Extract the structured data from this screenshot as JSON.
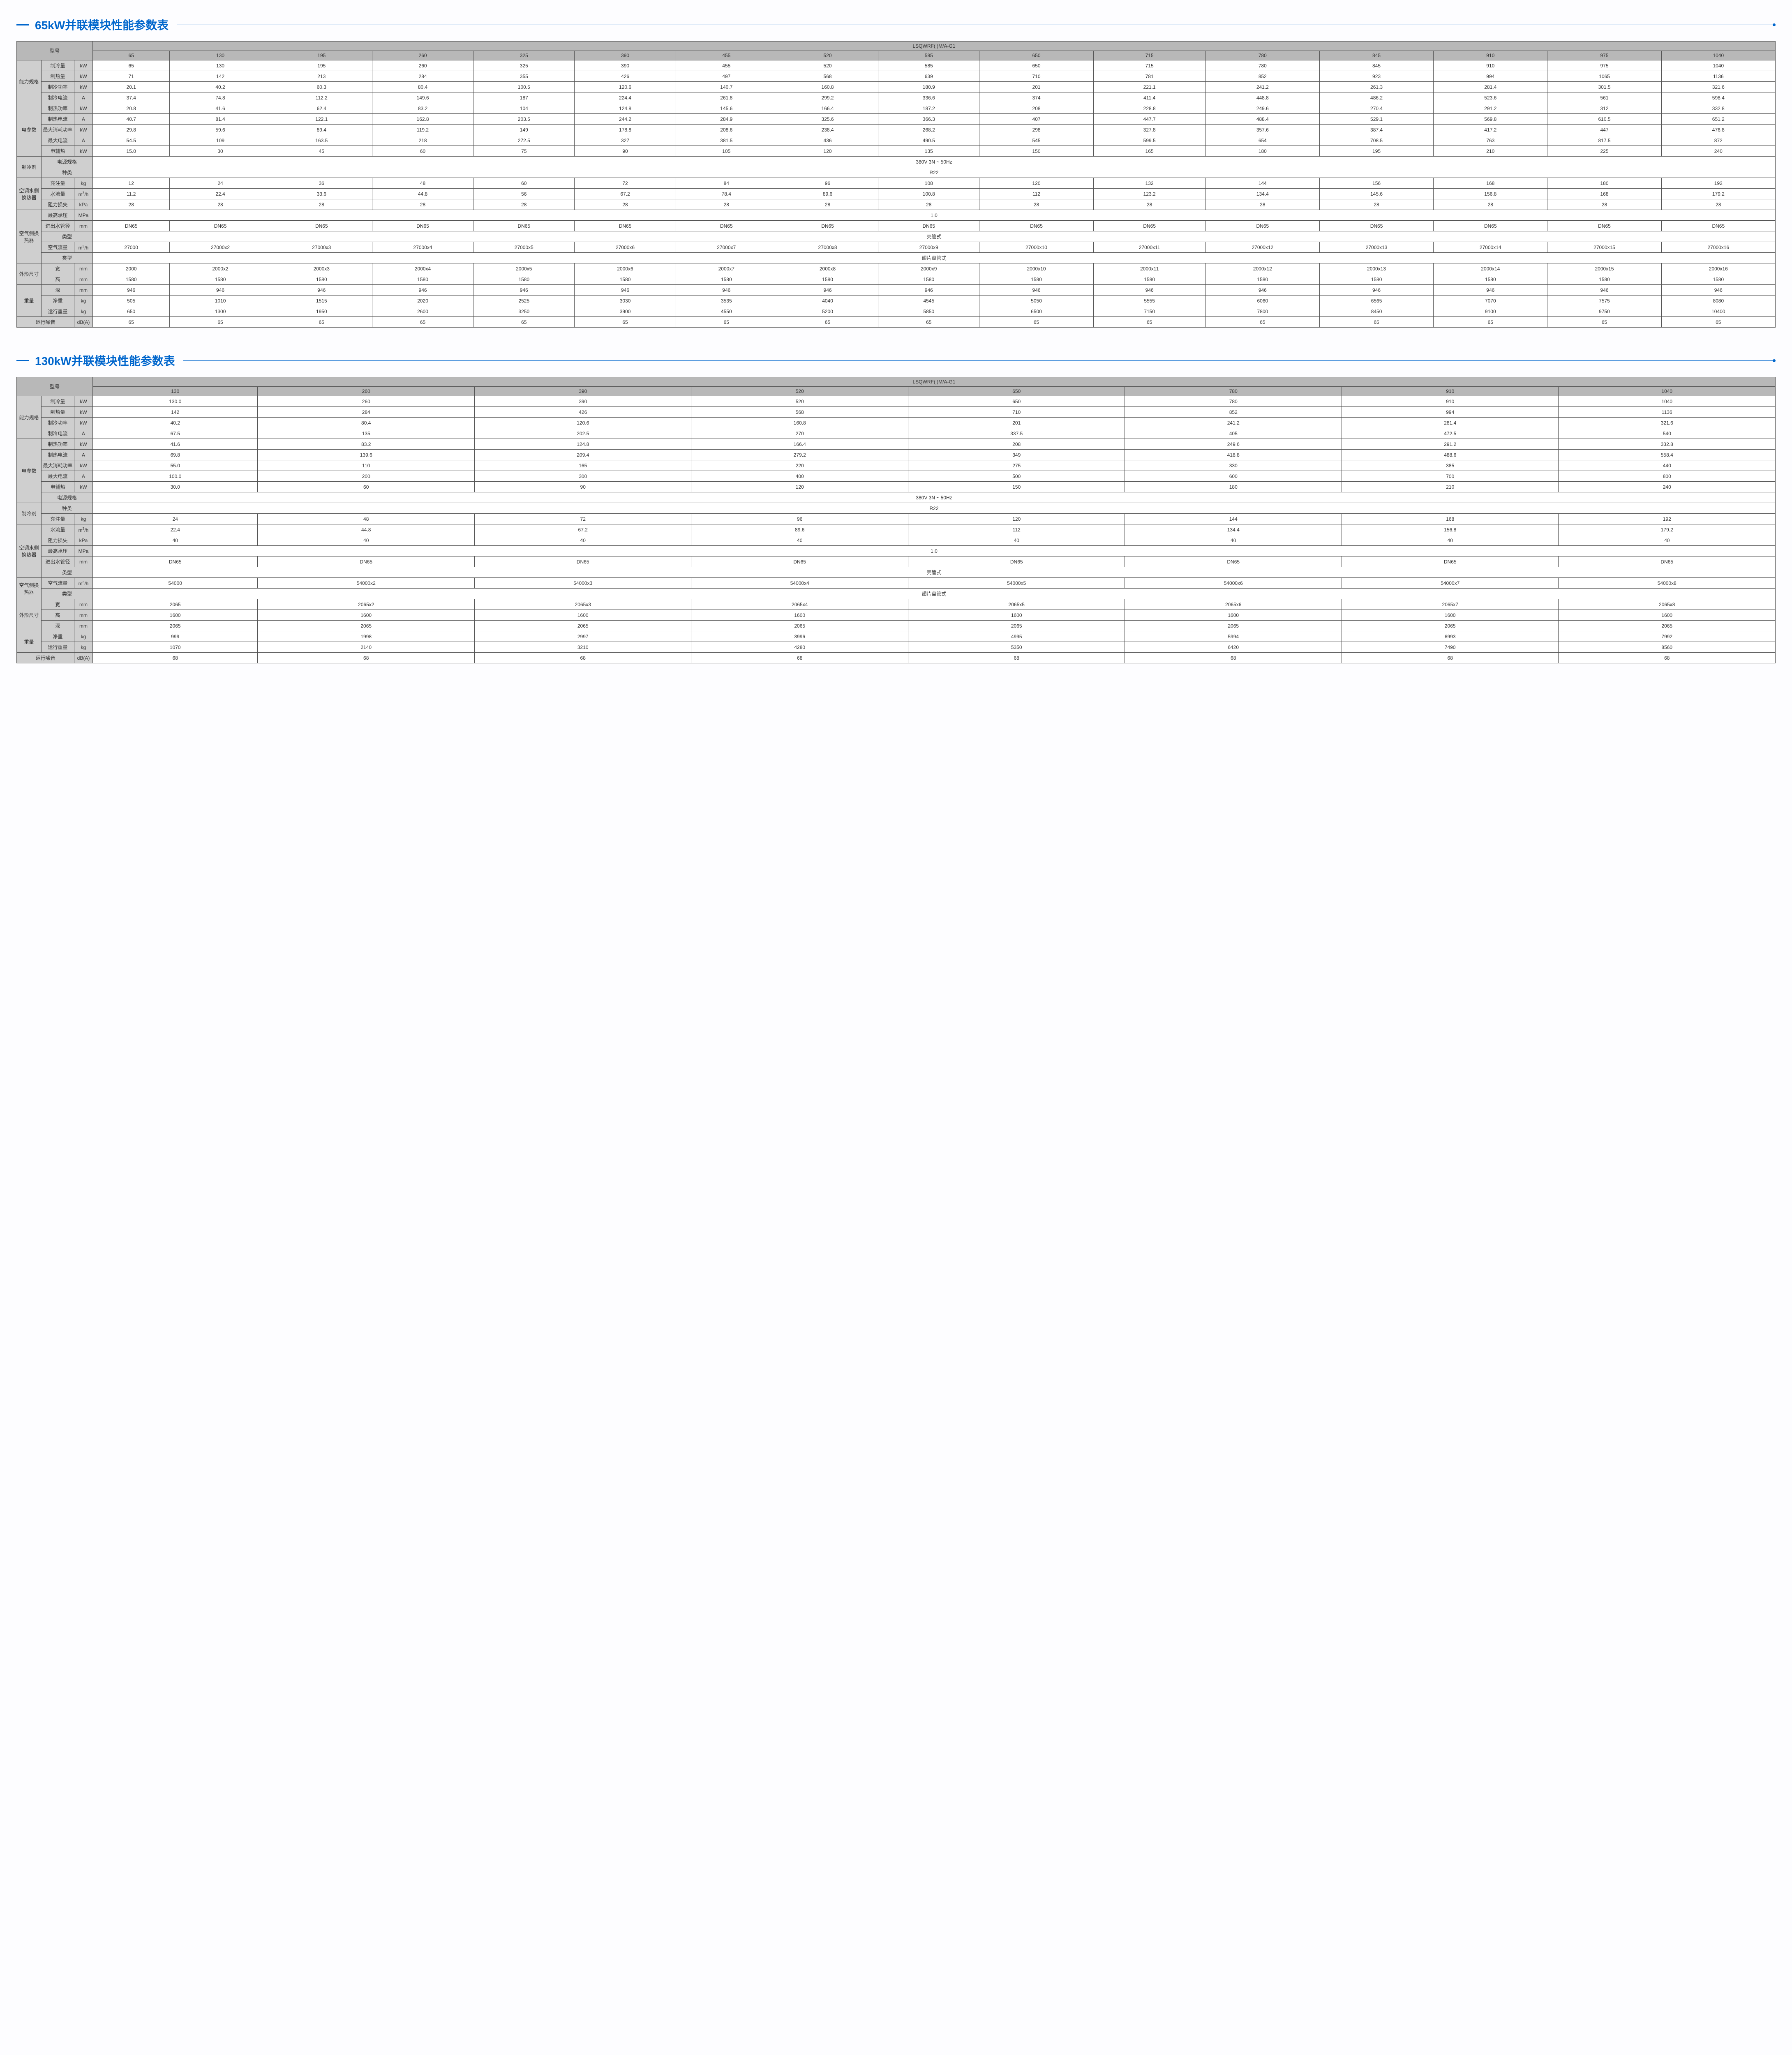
{
  "tables": [
    {
      "title": "65kW并联模块性能参数表",
      "model_label": "型号",
      "model_series": "LSQWRF( )M/A-G1",
      "cols": [
        "65",
        "130",
        "195",
        "260",
        "325",
        "390",
        "455",
        "520",
        "585",
        "650",
        "715",
        "780",
        "845",
        "910",
        "975",
        "1040"
      ],
      "groups": [
        {
          "cat": "能力规格",
          "rows": [
            {
              "label": "制冷量",
              "unit": "kW",
              "vals": [
                "65",
                "130",
                "195",
                "260",
                "325",
                "390",
                "455",
                "520",
                "585",
                "650",
                "715",
                "780",
                "845",
                "910",
                "975",
                "1040"
              ]
            },
            {
              "label": "制热量",
              "unit": "kW",
              "vals": [
                "71",
                "142",
                "213",
                "284",
                "355",
                "426",
                "497",
                "568",
                "639",
                "710",
                "781",
                "852",
                "923",
                "994",
                "1065",
                "1136"
              ]
            },
            {
              "label": "制冷功率",
              "unit": "kW",
              "vals": [
                "20.1",
                "40.2",
                "60.3",
                "80.4",
                "100.5",
                "120.6",
                "140.7",
                "160.8",
                "180.9",
                "201",
                "221.1",
                "241.2",
                "261.3",
                "281.4",
                "301.5",
                "321.6"
              ]
            },
            {
              "label": "制冷电流",
              "unit": "A",
              "vals": [
                "37.4",
                "74.8",
                "112.2",
                "149.6",
                "187",
                "224.4",
                "261.8",
                "299.2",
                "336.6",
                "374",
                "411.4",
                "448.8",
                "486.2",
                "523.6",
                "561",
                "598.4"
              ]
            }
          ]
        },
        {
          "cat": "电参数",
          "rows": [
            {
              "label": "制热功率",
              "unit": "kW",
              "vals": [
                "20.8",
                "41.6",
                "62.4",
                "83.2",
                "104",
                "124.8",
                "145.6",
                "166.4",
                "187.2",
                "208",
                "228.8",
                "249.6",
                "270.4",
                "291.2",
                "312",
                "332.8"
              ]
            },
            {
              "label": "制热电流",
              "unit": "A",
              "vals": [
                "40.7",
                "81.4",
                "122.1",
                "162.8",
                "203.5",
                "244.2",
                "284.9",
                "325.6",
                "366.3",
                "407",
                "447.7",
                "488.4",
                "529.1",
                "569.8",
                "610.5",
                "651.2"
              ]
            },
            {
              "label": "最大消耗功率",
              "unit": "kW",
              "vals": [
                "29.8",
                "59.6",
                "89.4",
                "119.2",
                "149",
                "178.8",
                "208.6",
                "238.4",
                "268.2",
                "298",
                "327.8",
                "357.6",
                "387.4",
                "417.2",
                "447",
                "476.8"
              ]
            },
            {
              "label": "最大电流",
              "unit": "A",
              "vals": [
                "54.5",
                "109",
                "163.5",
                "218",
                "272.5",
                "327",
                "381.5",
                "436",
                "490.5",
                "545",
                "599.5",
                "654",
                "708.5",
                "763",
                "817.5",
                "872"
              ]
            },
            {
              "label": "电辅热",
              "unit": "kW",
              "vals": [
                "15.0",
                "30",
                "45",
                "60",
                "75",
                "90",
                "105",
                "120",
                "135",
                "150",
                "165",
                "180",
                "195",
                "210",
                "225",
                "240"
              ]
            }
          ]
        },
        {
          "cat": "制冷剂",
          "rows": [
            {
              "label": "电源规格",
              "span": true,
              "val": "380V  3N ~ 50Hz"
            },
            {
              "label": "种类",
              "span": true,
              "val": "R22"
            }
          ]
        },
        {
          "cat": "空调水侧换热器",
          "rows": [
            {
              "label": "充注量",
              "unit": "kg",
              "vals": [
                "12",
                "24",
                "36",
                "48",
                "60",
                "72",
                "84",
                "96",
                "108",
                "120",
                "132",
                "144",
                "156",
                "168",
                "180",
                "192"
              ]
            },
            {
              "label": "水流量",
              "unit": "m³/h",
              "vals": [
                "11.2",
                "22.4",
                "33.6",
                "44.8",
                "56",
                "67.2",
                "78.4",
                "89.6",
                "100.8",
                "112",
                "123.2",
                "134.4",
                "145.6",
                "156.8",
                "168",
                "179.2"
              ]
            },
            {
              "label": "阻力损失",
              "unit": "kPa",
              "vals": [
                "28",
                "28",
                "28",
                "28",
                "28",
                "28",
                "28",
                "28",
                "28",
                "28",
                "28",
                "28",
                "28",
                "28",
                "28",
                "28"
              ]
            }
          ]
        },
        {
          "cat": "空气侧换热器",
          "rows": [
            {
              "label": "最高承压",
              "unit": "MPa",
              "span": true,
              "val": "1.0"
            },
            {
              "label": "进出水管径",
              "unit": "mm",
              "vals": [
                "DN65",
                "DN65",
                "DN65",
                "DN65",
                "DN65",
                "DN65",
                "DN65",
                "DN65",
                "DN65",
                "DN65",
                "DN65",
                "DN65",
                "DN65",
                "DN65",
                "DN65",
                "DN65"
              ]
            },
            {
              "label": "类型",
              "span": true,
              "val": "壳管式"
            },
            {
              "label": "空气流量",
              "unit": "m³/h",
              "vals": [
                "27000",
                "27000x2",
                "27000x3",
                "27000x4",
                "27000x5",
                "27000x6",
                "27000x7",
                "27000x8",
                "27000x9",
                "27000x10",
                "27000x11",
                "27000x12",
                "27000x13",
                "27000x14",
                "27000x15",
                "27000x16"
              ]
            },
            {
              "label": "类型",
              "span": true,
              "val": "翅片盘管式"
            }
          ]
        },
        {
          "cat": "外形尺寸",
          "rows": [
            {
              "label": "宽",
              "unit": "mm",
              "vals": [
                "2000",
                "2000x2",
                "2000x3",
                "2000x4",
                "2000x5",
                "2000x6",
                "2000x7",
                "2000x8",
                "2000x9",
                "2000x10",
                "2000x11",
                "2000x12",
                "2000x13",
                "2000x14",
                "2000x15",
                "2000x16"
              ]
            },
            {
              "label": "高",
              "unit": "mm",
              "vals": [
                "1580",
                "1580",
                "1580",
                "1580",
                "1580",
                "1580",
                "1580",
                "1580",
                "1580",
                "1580",
                "1580",
                "1580",
                "1580",
                "1580",
                "1580",
                "1580"
              ]
            }
          ]
        },
        {
          "cat": "重量",
          "rows": [
            {
              "label": "深",
              "unit": "mm",
              "vals": [
                "946",
                "946",
                "946",
                "946",
                "946",
                "946",
                "946",
                "946",
                "946",
                "946",
                "946",
                "946",
                "946",
                "946",
                "946",
                "946"
              ]
            },
            {
              "label": "净重",
              "unit": "kg",
              "vals": [
                "505",
                "1010",
                "1515",
                "2020",
                "2525",
                "3030",
                "3535",
                "4040",
                "4545",
                "5050",
                "5555",
                "6060",
                "6565",
                "7070",
                "7575",
                "8080"
              ]
            },
            {
              "label": "运行重量",
              "unit": "kg",
              "vals": [
                "650",
                "1300",
                "1950",
                "2600",
                "3250",
                "3900",
                "4550",
                "5200",
                "5850",
                "6500",
                "7150",
                "7800",
                "8450",
                "9100",
                "9750",
                "10400"
              ]
            }
          ]
        }
      ],
      "noise": {
        "label": "运行噪音",
        "unit": "dB(A)",
        "vals": [
          "65",
          "65",
          "65",
          "65",
          "65",
          "65",
          "65",
          "65",
          "65",
          "65",
          "65",
          "65",
          "65",
          "65",
          "65",
          "65"
        ]
      }
    },
    {
      "title": "130kW并联模块性能参数表",
      "model_label": "型号",
      "model_series": "LSQWRF( )M/A-G1",
      "cols": [
        "130",
        "260",
        "390",
        "520",
        "650",
        "780",
        "910",
        "1040"
      ],
      "groups": [
        {
          "cat": "能力规格",
          "rows": [
            {
              "label": "制冷量",
              "unit": "kW",
              "vals": [
                "130.0",
                "260",
                "390",
                "520",
                "650",
                "780",
                "910",
                "1040"
              ]
            },
            {
              "label": "制热量",
              "unit": "kW",
              "vals": [
                "142",
                "284",
                "426",
                "568",
                "710",
                "852",
                "994",
                "1136"
              ]
            },
            {
              "label": "制冷功率",
              "unit": "kW",
              "vals": [
                "40.2",
                "80.4",
                "120.6",
                "160.8",
                "201",
                "241.2",
                "281.4",
                "321.6"
              ]
            },
            {
              "label": "制冷电流",
              "unit": "A",
              "vals": [
                "67.5",
                "135",
                "202.5",
                "270",
                "337.5",
                "405",
                "472.5",
                "540"
              ]
            }
          ]
        },
        {
          "cat": "电参数",
          "rows": [
            {
              "label": "制热功率",
              "unit": "kW",
              "vals": [
                "41.6",
                "83.2",
                "124.8",
                "166.4",
                "208",
                "249.6",
                "291.2",
                "332.8"
              ]
            },
            {
              "label": "制热电流",
              "unit": "A",
              "vals": [
                "69.8",
                "139.6",
                "209.4",
                "279.2",
                "349",
                "418.8",
                "488.6",
                "558.4"
              ]
            },
            {
              "label": "最大消耗功率",
              "unit": "kW",
              "vals": [
                "55.0",
                "110",
                "165",
                "220",
                "275",
                "330",
                "385",
                "440"
              ]
            },
            {
              "label": "最大电流",
              "unit": "A",
              "vals": [
                "100.0",
                "200",
                "300",
                "400",
                "500",
                "600",
                "700",
                "800"
              ]
            },
            {
              "label": "电辅热",
              "unit": "kW",
              "vals": [
                "30.0",
                "60",
                "90",
                "120",
                "150",
                "180",
                "210",
                "240"
              ]
            },
            {
              "label": "电源规格",
              "span": true,
              "val": "380V  3N ~ 50Hz"
            }
          ]
        },
        {
          "cat": "制冷剂",
          "rows": [
            {
              "label": "种类",
              "span": true,
              "val": "R22"
            },
            {
              "label": "充注量",
              "unit": "kg",
              "vals": [
                "24",
                "48",
                "72",
                "96",
                "120",
                "144",
                "168",
                "192"
              ]
            }
          ]
        },
        {
          "cat": "空调水侧换热器",
          "rows": [
            {
              "label": "水流量",
              "unit": "m³/h",
              "vals": [
                "22.4",
                "44.8",
                "67.2",
                "89.6",
                "112",
                "134.4",
                "156.8",
                "179.2"
              ]
            },
            {
              "label": "阻力损失",
              "unit": "kPa",
              "vals": [
                "40",
                "40",
                "40",
                "40",
                "40",
                "40",
                "40",
                "40"
              ]
            },
            {
              "label": "最高承压",
              "unit": "MPa",
              "span": true,
              "val": "1.0"
            },
            {
              "label": "进出水管径",
              "unit": "mm",
              "vals": [
                "DN65",
                "DN65",
                "DN65",
                "DN65",
                "DN65",
                "DN65",
                "DN65",
                "DN65"
              ]
            },
            {
              "label": "类型",
              "span": true,
              "val": "壳管式"
            }
          ]
        },
        {
          "cat": "空气侧换热器",
          "rows": [
            {
              "label": "空气流量",
              "unit": "m³/h",
              "vals": [
                "54000",
                "54000x2",
                "54000x3",
                "54000x4",
                "54000x5",
                "54000x6",
                "54000x7",
                "54000x8"
              ]
            },
            {
              "label": "类型",
              "span": true,
              "val": "翅片盘管式"
            }
          ]
        },
        {
          "cat": "外形尺寸",
          "rows": [
            {
              "label": "宽",
              "unit": "mm",
              "vals": [
                "2065",
                "2065x2",
                "2065x3",
                "2065x4",
                "2065x5",
                "2065x6",
                "2065x7",
                "2065x8"
              ]
            },
            {
              "label": "高",
              "unit": "mm",
              "vals": [
                "1600",
                "1600",
                "1600",
                "1600",
                "1600",
                "1600",
                "1600",
                "1600"
              ]
            },
            {
              "label": "深",
              "unit": "mm",
              "vals": [
                "2065",
                "2065",
                "2065",
                "2065",
                "2065",
                "2065",
                "2065",
                "2065"
              ]
            }
          ]
        },
        {
          "cat": "重量",
          "rows": [
            {
              "label": "净重",
              "unit": "kg",
              "vals": [
                "999",
                "1998",
                "2997",
                "3996",
                "4995",
                "5994",
                "6993",
                "7992"
              ]
            },
            {
              "label": "运行重量",
              "unit": "kg",
              "vals": [
                "1070",
                "2140",
                "3210",
                "4280",
                "5350",
                "6420",
                "7490",
                "8560"
              ]
            }
          ]
        }
      ],
      "noise": {
        "label": "运行噪音",
        "unit": "dB(A)",
        "vals": [
          "68",
          "68",
          "68",
          "68",
          "68",
          "68",
          "68",
          "68"
        ]
      }
    }
  ]
}
